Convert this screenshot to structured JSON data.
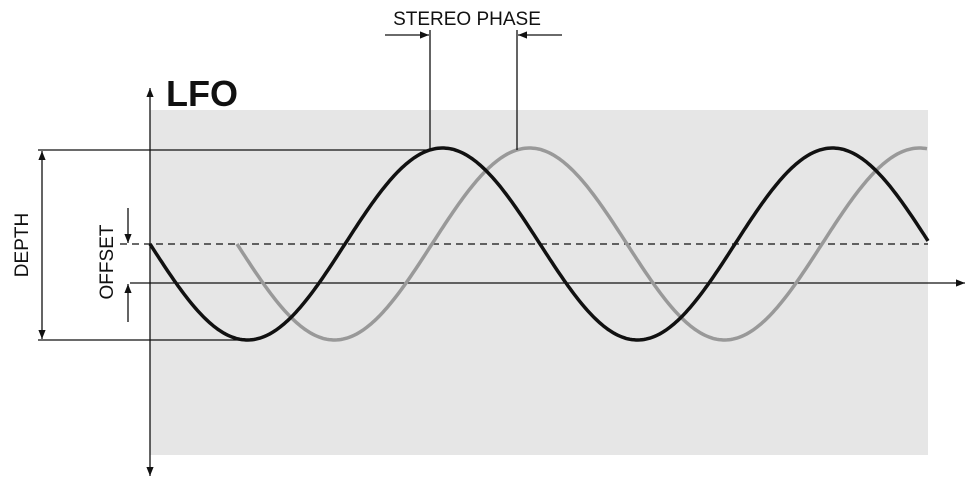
{
  "title": "LFO",
  "labels": {
    "stereo_phase": "STEREO PHASE",
    "depth": "DEPTH",
    "offset": "OFFSET"
  }
}
